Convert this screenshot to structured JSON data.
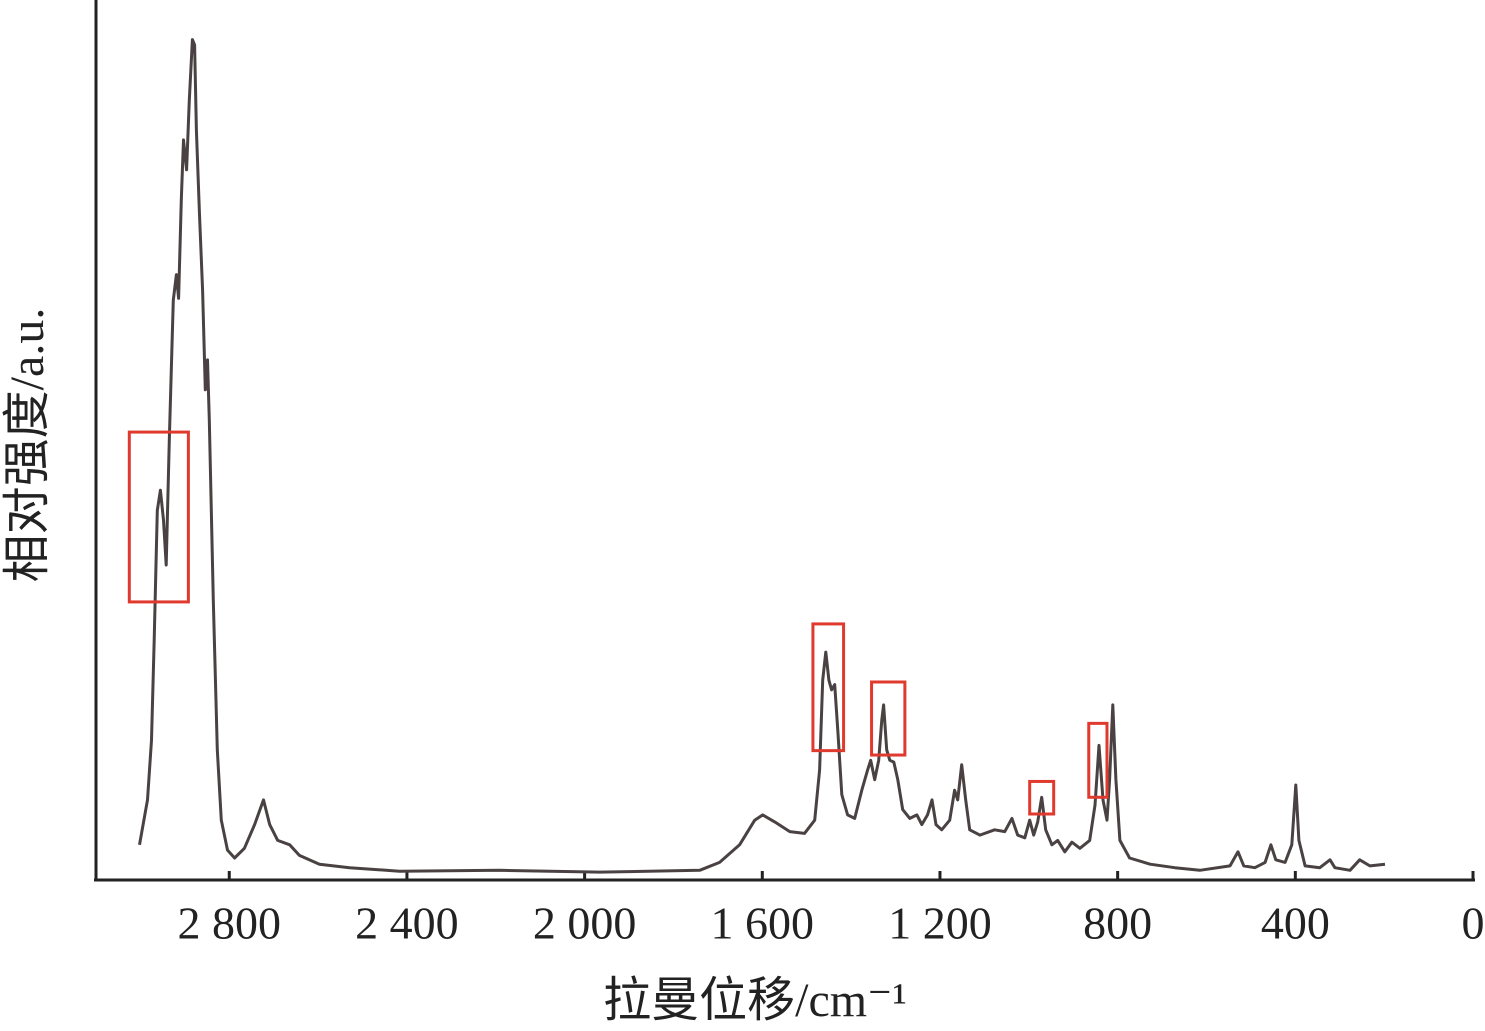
{
  "chart_data": {
    "type": "line",
    "xlabel": "拉曼位移/cm⁻¹",
    "ylabel": "相对强度/a.u.",
    "xlim": [
      3100,
      0
    ],
    "ylim": [
      0,
      100
    ],
    "xticks": [
      {
        "value": 2800,
        "label": "2 800"
      },
      {
        "value": 2400,
        "label": "2 400"
      },
      {
        "value": 2000,
        "label": "2 000"
      },
      {
        "value": 1600,
        "label": "1 600"
      },
      {
        "value": 1200,
        "label": "1 200"
      },
      800,
      400,
      0
    ],
    "grid": false,
    "series": [
      {
        "color": "#4a4242",
        "x": [
          3002,
          2984,
          2975,
          2969,
          2962,
          2955,
          2948,
          2942,
          2935,
          2926,
          2919,
          2914,
          2908,
          2903,
          2896,
          2890,
          2883,
          2878,
          2874,
          2867,
          2860,
          2854,
          2849,
          2845,
          2836,
          2827,
          2818,
          2804,
          2788,
          2766,
          2743,
          2723,
          2709,
          2691,
          2664,
          2642,
          2597,
          2529,
          2417,
          2191,
          1966,
          1741,
          1696,
          1651,
          1617,
          1599,
          1572,
          1538,
          1505,
          1482,
          1471,
          1464,
          1457,
          1450,
          1444,
          1437,
          1430,
          1421,
          1408,
          1392,
          1376,
          1363,
          1356,
          1347,
          1338,
          1331,
          1327,
          1320,
          1313,
          1304,
          1295,
          1284,
          1268,
          1252,
          1241,
          1228,
          1218,
          1209,
          1196,
          1178,
          1167,
          1160,
          1151,
          1142,
          1133,
          1110,
          1077,
          1054,
          1038,
          1025,
          1009,
          998,
          989,
          980,
          971,
          962,
          948,
          935,
          919,
          903,
          885,
          863,
          851,
          842,
          833,
          824,
          818,
          811,
          804,
          795,
          773,
          727,
          671,
          615,
          547,
          529,
          516,
          491,
          468,
          455,
          444,
          423,
          408,
          399,
          392,
          378,
          345,
          322,
          311,
          277,
          255,
          232,
          198
        ],
        "values": [
          4.0,
          9.1,
          15.9,
          27.3,
          42.0,
          44.3,
          40.9,
          35.8,
          50.0,
          65.9,
          68.8,
          66.1,
          77.3,
          84.1,
          80.7,
          88.6,
          95.5,
          94.9,
          85.2,
          75.6,
          67.0,
          55.7,
          59.1,
          52.3,
          31.8,
          14.8,
          6.8,
          3.4,
          2.5,
          3.6,
          6.3,
          9.1,
          6.3,
          4.5,
          4.0,
          2.8,
          1.8,
          1.4,
          1.0,
          1.1,
          0.9,
          1.1,
          2.0,
          4.0,
          6.8,
          7.4,
          6.6,
          5.5,
          5.3,
          6.8,
          12.5,
          22.7,
          25.9,
          22.7,
          21.6,
          22.2,
          17.0,
          9.7,
          7.4,
          7.0,
          10.2,
          12.5,
          13.6,
          11.4,
          13.6,
          18.2,
          19.9,
          14.8,
          13.6,
          13.4,
          11.4,
          8.0,
          7.0,
          7.4,
          6.3,
          7.4,
          9.1,
          6.3,
          5.7,
          6.8,
          10.2,
          9.1,
          13.1,
          9.1,
          5.7,
          5.1,
          5.7,
          5.5,
          7.0,
          5.1,
          4.8,
          6.8,
          5.1,
          6.6,
          9.4,
          5.7,
          4.0,
          4.5,
          3.2,
          4.3,
          3.6,
          4.5,
          8.5,
          15.3,
          9.1,
          6.8,
          11.4,
          19.9,
          11.4,
          4.5,
          2.5,
          1.8,
          1.4,
          1.1,
          1.6,
          3.2,
          1.6,
          1.4,
          2.0,
          4.0,
          2.3,
          2.0,
          4.0,
          10.8,
          4.5,
          1.6,
          1.4,
          2.3,
          1.4,
          1.1,
          2.3,
          1.6,
          1.8
        ]
      }
    ],
    "highlight_boxes": [
      {
        "color": "#e03a2f",
        "x": [
          3025,
          2892
        ],
        "y": [
          31.6,
          50.9
        ]
      },
      {
        "color": "#e03a2f",
        "x": [
          1486,
          1417
        ],
        "y": [
          14.7,
          29.1
        ]
      },
      {
        "color": "#e03a2f",
        "x": [
          1354,
          1279
        ],
        "y": [
          14.2,
          22.5
        ]
      },
      {
        "color": "#e03a2f",
        "x": [
          998,
          944
        ],
        "y": [
          7.5,
          11.2
        ]
      },
      {
        "color": "#e03a2f",
        "x": [
          865,
          824
        ],
        "y": [
          9.4,
          17.8
        ]
      }
    ]
  }
}
